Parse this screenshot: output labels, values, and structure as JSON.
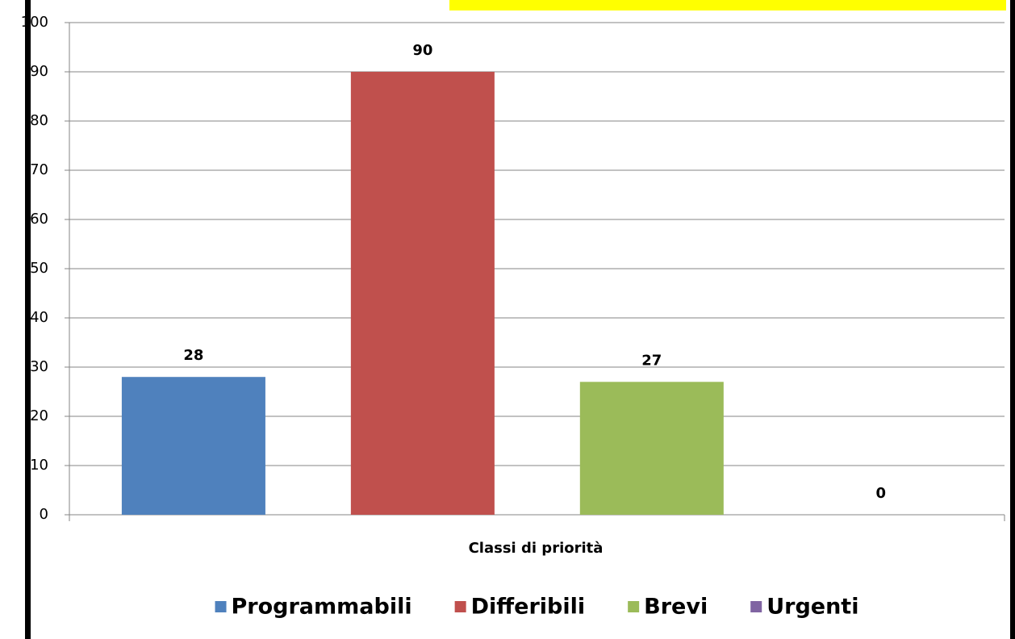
{
  "chart_data": {
    "type": "bar",
    "x_label": "Classi di priorità",
    "categories": [
      null
    ],
    "series": [
      {
        "name": "Programmabili",
        "color": "#4f81bd",
        "values": [
          28
        ]
      },
      {
        "name": "Differibili",
        "color": "#c0504d",
        "values": [
          90
        ]
      },
      {
        "name": "Brevi",
        "color": "#9bbb59",
        "values": [
          27
        ]
      },
      {
        "name": "Urgenti",
        "color": "#8064a2",
        "values": [
          0
        ]
      }
    ],
    "ylim": [
      0,
      100
    ],
    "yticks": [
      0,
      10,
      20,
      30,
      40,
      50,
      60,
      70,
      80,
      90,
      100
    ],
    "grid": true,
    "legend": "bottom"
  }
}
